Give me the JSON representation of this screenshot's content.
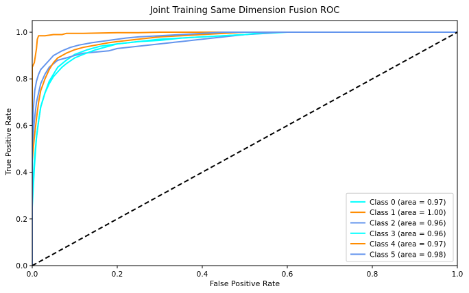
{
  "chart_data": {
    "type": "line",
    "title": "Joint Training Same Dimension Fusion ROC",
    "xlabel": "False Positive Rate",
    "ylabel": "True Positive Rate",
    "xlim": [
      0.0,
      1.0
    ],
    "ylim": [
      0.0,
      1.05
    ],
    "xticks": [
      "0.0",
      "0.2",
      "0.4",
      "0.6",
      "0.8",
      "1.0"
    ],
    "yticks": [
      "0.0",
      "0.2",
      "0.4",
      "0.6",
      "0.8",
      "1.0"
    ],
    "grid": false,
    "legend_position": "lower right",
    "diagonal": {
      "x": [
        0,
        1
      ],
      "y": [
        0,
        1
      ],
      "color": "#000000",
      "style": "dashed"
    },
    "series": [
      {
        "name": "Class 0 (area = 0.97)",
        "color": "#00ffff",
        "x": [
          0,
          0,
          0.005,
          0.01,
          0.015,
          0.02,
          0.03,
          0.04,
          0.05,
          0.06,
          0.08,
          0.1,
          0.13,
          0.16,
          0.2,
          0.25,
          0.3,
          0.35,
          0.4,
          0.45,
          0.5,
          0.55,
          0.6,
          1.0
        ],
        "y": [
          0,
          0.25,
          0.42,
          0.55,
          0.62,
          0.68,
          0.74,
          0.79,
          0.82,
          0.85,
          0.88,
          0.905,
          0.925,
          0.94,
          0.95,
          0.96,
          0.965,
          0.975,
          0.98,
          0.985,
          0.99,
          0.995,
          1.0,
          1.0
        ]
      },
      {
        "name": "Class 1 (area = 1.00)",
        "color": "#ff8c00",
        "x": [
          0,
          0,
          0.005,
          0.01,
          0.012,
          0.015,
          0.03,
          0.05,
          0.07,
          0.08,
          0.12,
          0.2,
          0.25,
          0.3,
          0.32,
          1.0
        ],
        "y": [
          0,
          0.85,
          0.87,
          0.93,
          0.97,
          0.985,
          0.985,
          0.99,
          0.99,
          0.995,
          0.995,
          0.998,
          0.998,
          1.0,
          1.0,
          1.0
        ]
      },
      {
        "name": "Class 2 (area = 0.96)",
        "color": "#6495ed",
        "x": [
          0,
          0,
          0.005,
          0.01,
          0.015,
          0.02,
          0.03,
          0.04,
          0.06,
          0.08,
          0.1,
          0.12,
          0.15,
          0.18,
          0.2,
          0.25,
          0.3,
          0.35,
          0.4,
          0.45,
          0.5,
          0.58,
          1.0
        ],
        "y": [
          0,
          0.5,
          0.62,
          0.7,
          0.74,
          0.78,
          0.82,
          0.85,
          0.88,
          0.89,
          0.9,
          0.91,
          0.915,
          0.92,
          0.93,
          0.94,
          0.95,
          0.96,
          0.97,
          0.98,
          0.99,
          1.0,
          1.0
        ]
      },
      {
        "name": "Class 3 (area = 0.96)",
        "color": "#00ffff",
        "x": [
          0,
          0,
          0.005,
          0.01,
          0.015,
          0.02,
          0.03,
          0.04,
          0.05,
          0.06,
          0.07,
          0.08,
          0.1,
          0.12,
          0.15,
          0.18,
          0.2,
          0.25,
          0.3,
          0.35,
          0.4,
          0.45,
          0.5,
          0.55,
          1.0
        ],
        "y": [
          0,
          0.3,
          0.45,
          0.55,
          0.62,
          0.68,
          0.74,
          0.78,
          0.81,
          0.83,
          0.85,
          0.865,
          0.89,
          0.905,
          0.925,
          0.94,
          0.95,
          0.96,
          0.97,
          0.975,
          0.98,
          0.985,
          0.99,
          1.0,
          1.0
        ]
      },
      {
        "name": "Class 4 (area = 0.97)",
        "color": "#ff8c00",
        "x": [
          0,
          0,
          0.005,
          0.01,
          0.015,
          0.02,
          0.03,
          0.04,
          0.05,
          0.06,
          0.08,
          0.1,
          0.12,
          0.15,
          0.18,
          0.2,
          0.25,
          0.3,
          0.35,
          0.4,
          0.45,
          0.5,
          1.0
        ],
        "y": [
          0,
          0.45,
          0.55,
          0.63,
          0.7,
          0.75,
          0.8,
          0.84,
          0.87,
          0.89,
          0.91,
          0.925,
          0.935,
          0.945,
          0.955,
          0.96,
          0.97,
          0.98,
          0.985,
          0.99,
          0.995,
          1.0,
          1.0
        ]
      },
      {
        "name": "Class 5 (area = 0.98)",
        "color": "#6495ed",
        "x": [
          0,
          0,
          0.003,
          0.006,
          0.01,
          0.015,
          0.02,
          0.03,
          0.04,
          0.05,
          0.07,
          0.09,
          0.11,
          0.14,
          0.18,
          0.22,
          0.25,
          0.3,
          0.35,
          0.4,
          0.45,
          1.0
        ],
        "y": [
          0,
          0.55,
          0.68,
          0.75,
          0.79,
          0.82,
          0.84,
          0.86,
          0.88,
          0.9,
          0.92,
          0.935,
          0.945,
          0.955,
          0.965,
          0.975,
          0.98,
          0.985,
          0.99,
          0.995,
          1.0,
          1.0
        ]
      }
    ]
  }
}
